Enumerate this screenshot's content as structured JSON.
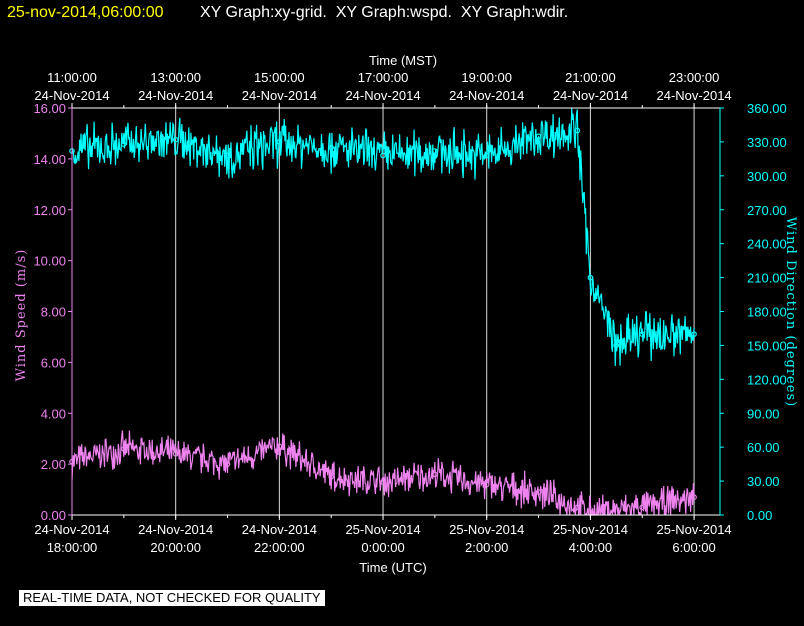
{
  "header": {
    "date": "25-nov-2014,06:00:00",
    "titles": "XY Graph:xy-grid.  XY Graph:wspd.  XY Graph:wdir."
  },
  "notice": "REAL-TIME DATA, NOT CHECKED FOR QUALITY",
  "colors": {
    "wind_speed": "#ee82ee",
    "wind_direction": "#00ffff",
    "grid": "#ffffff",
    "header_date": "#ffff00",
    "background": "#000000"
  },
  "chart_data": {
    "type": "scatter",
    "title": "",
    "top_axis": {
      "label": "Time (MST)",
      "ticks": [
        {
          "time": "11:00:00",
          "date": "24-Nov-2014"
        },
        {
          "time": "13:00:00",
          "date": "24-Nov-2014"
        },
        {
          "time": "15:00:00",
          "date": "24-Nov-2014"
        },
        {
          "time": "17:00:00",
          "date": "24-Nov-2014"
        },
        {
          "time": "19:00:00",
          "date": "24-Nov-2014"
        },
        {
          "time": "21:00:00",
          "date": "24-Nov-2014"
        },
        {
          "time": "23:00:00",
          "date": "24-Nov-2014"
        }
      ]
    },
    "bottom_axis": {
      "label": "Time (UTC)",
      "ticks": [
        {
          "date": "24-Nov-2014",
          "time": "18:00:00"
        },
        {
          "date": "24-Nov-2014",
          "time": "20:00:00"
        },
        {
          "date": "24-Nov-2014",
          "time": "22:00:00"
        },
        {
          "date": "25-Nov-2014",
          "time": "0:00:00"
        },
        {
          "date": "25-Nov-2014",
          "time": "2:00:00"
        },
        {
          "date": "25-Nov-2014",
          "time": "4:00:00"
        },
        {
          "date": "25-Nov-2014",
          "time": "6:00:00"
        }
      ],
      "xlim_utc": [
        "2014-11-24 18:00",
        "2014-11-25 06:30"
      ]
    },
    "y_left": {
      "label": "Wind Speed (m/s)",
      "ylim": [
        0,
        16
      ],
      "ticks": [
        "0.00",
        "2.00",
        "4.00",
        "6.00",
        "8.00",
        "10.00",
        "12.00",
        "14.00",
        "16.00"
      ]
    },
    "y_right": {
      "label": "Wind Direction (degrees)",
      "ylim": [
        0,
        360
      ],
      "ticks": [
        "0.00",
        "30.00",
        "60.00",
        "90.00",
        "120.00",
        "150.00",
        "180.00",
        "210.00",
        "240.00",
        "270.00",
        "300.00",
        "330.00",
        "360.00"
      ]
    },
    "grid": true,
    "series": [
      {
        "axis": "left",
        "x": [
          "2014-11-24 18:00",
          "2014-11-24 19:00",
          "2014-11-24 20:00",
          "2014-11-24 21:00",
          "2014-11-24 22:00",
          "2014-11-24 23:00",
          "2014-11-25 00:00",
          "2014-11-25 01:00",
          "2014-11-25 02:00",
          "2014-11-25 03:00",
          "2014-11-25 03:45",
          "2014-11-25 04:00",
          "2014-11-25 05:00",
          "2014-11-25 06:00"
        ],
        "y": [
          2.1,
          2.6,
          2.4,
          2.0,
          2.7,
          1.5,
          1.3,
          1.6,
          1.2,
          0.9,
          0.3,
          0.1,
          0.3,
          0.7
        ]
      },
      {
        "axis": "right",
        "x": [
          "2014-11-24 18:00",
          "2014-11-24 19:00",
          "2014-11-24 20:00",
          "2014-11-24 21:00",
          "2014-11-24 22:00",
          "2014-11-24 23:00",
          "2014-11-25 00:00",
          "2014-11-25 01:00",
          "2014-11-25 02:00",
          "2014-11-25 03:00",
          "2014-11-25 03:45",
          "2014-11-25 04:00",
          "2014-11-25 04:30",
          "2014-11-25 05:00",
          "2014-11-25 06:00"
        ],
        "y": [
          322,
          328,
          332,
          318,
          330,
          325,
          318,
          322,
          318,
          335,
          340,
          210,
          150,
          160,
          160
        ]
      }
    ]
  }
}
